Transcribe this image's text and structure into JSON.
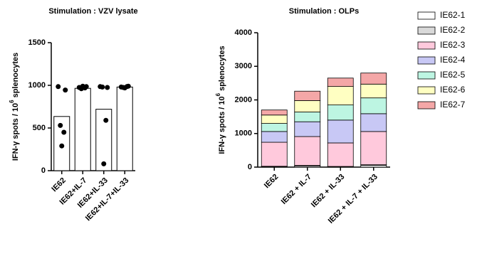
{
  "chart_data": [
    {
      "type": "bar",
      "title": "Stimulation : VZV lysate",
      "y_label": [
        "IFN-γ spots / 10",
        "6",
        "splenocytes"
      ],
      "categories": [
        "IE62",
        "IE62+IL-7",
        "IE62+IL-33",
        "IE62+IL-7+IL-33"
      ],
      "values": [
        635,
        965,
        720,
        980
      ],
      "points": [
        [
          985,
          945,
          530,
          450,
          290
        ],
        [
          975,
          985,
          960,
          970,
          990
        ],
        [
          985,
          975,
          980,
          590,
          80
        ],
        [
          980,
          990,
          975,
          985,
          970
        ]
      ],
      "color": "#ffffff",
      "ylim": [
        0,
        1500
      ],
      "yticks": [
        0,
        500,
        1000,
        1500
      ]
    },
    {
      "type": "stacked_bar",
      "title": "Stimulation : OLPs",
      "y_label": [
        "IFN-γ spots / 10",
        "6",
        "splenocytes"
      ],
      "categories": [
        "IE62",
        "IE62 + IL-7",
        "IE62 + IL-33",
        "IE62 + IL-7 + IL-33"
      ],
      "series": [
        {
          "name": "IE62-1",
          "color": "#ffffff",
          "values": [
            15,
            30,
            10,
            50
          ]
        },
        {
          "name": "IE62-2",
          "color": "#d9d9d9",
          "values": [
            10,
            20,
            10,
            20
          ]
        },
        {
          "name": "IE62-3",
          "color": "#ffc9dc",
          "values": [
            715,
            860,
            700,
            990
          ]
        },
        {
          "name": "IE62-4",
          "color": "#c8c8f5",
          "values": [
            320,
            440,
            680,
            530
          ]
        },
        {
          "name": "IE62-5",
          "color": "#bdf5e2",
          "values": [
            240,
            290,
            450,
            470
          ]
        },
        {
          "name": "IE62-6",
          "color": "#ffffc2",
          "values": [
            250,
            340,
            550,
            410
          ]
        },
        {
          "name": "IE62-7",
          "color": "#f4a7a7",
          "values": [
            150,
            280,
            250,
            330
          ]
        }
      ],
      "ylim": [
        0,
        4000
      ],
      "yticks": [
        0,
        1000,
        2000,
        3000,
        4000
      ],
      "legend": "right"
    }
  ]
}
